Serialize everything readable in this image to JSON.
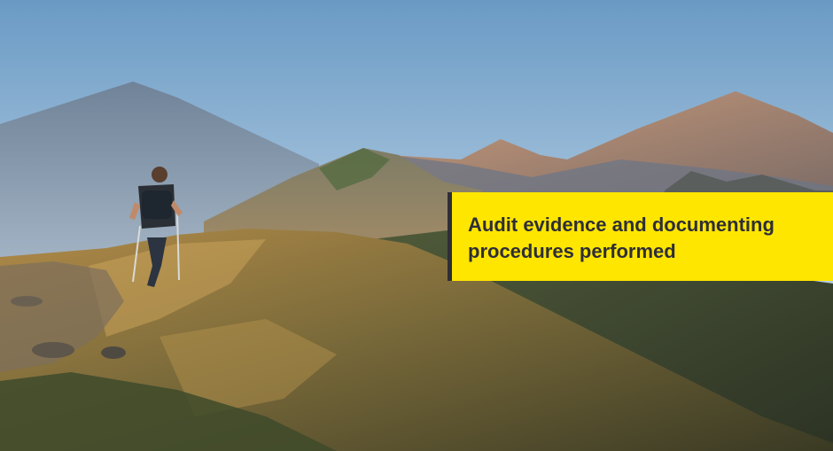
{
  "banner": {
    "title_line1": "Audit evidence and documenting",
    "title_line2": "procedures performed",
    "background_color": "#ffe600",
    "text_color": "#2e2e38"
  },
  "scene": {
    "description_icon": "hiker-on-mountain-ridge-photo"
  }
}
